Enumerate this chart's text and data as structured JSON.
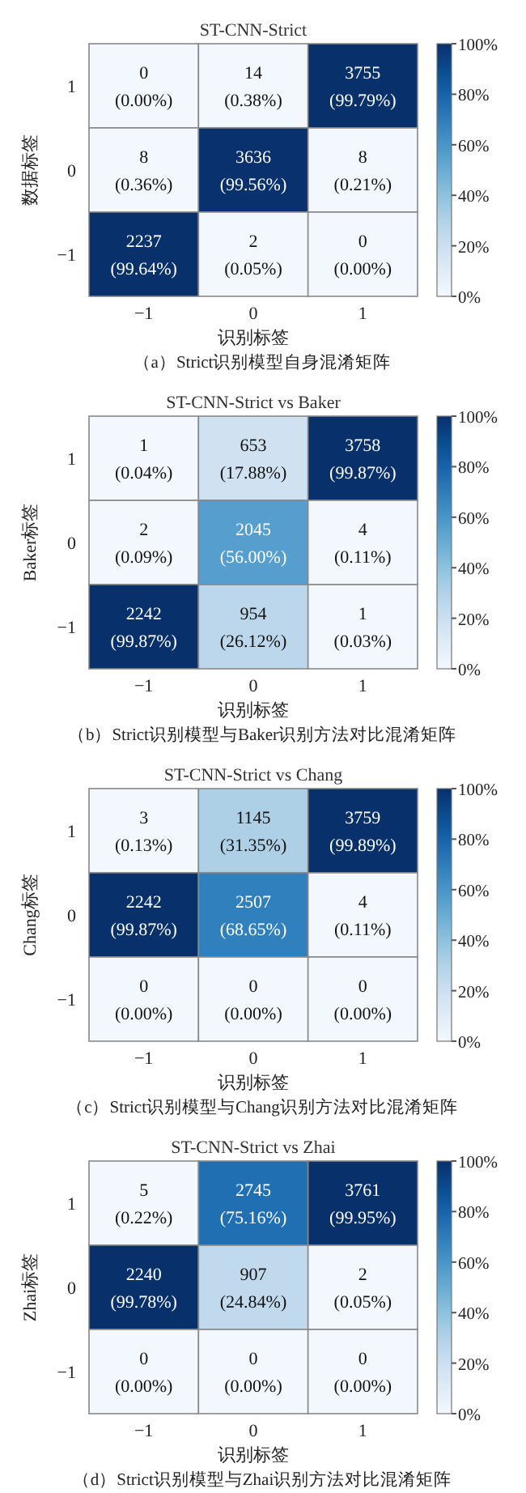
{
  "chart_data": [
    {
      "type": "heatmap",
      "title": "ST-CNN-Strict",
      "xlabel": "识别标签",
      "ylabel": "数据标签",
      "categories": [
        "−1",
        "0",
        "1"
      ],
      "y_categories": [
        "1",
        "0",
        "−1"
      ],
      "cells": [
        [
          0.0,
          0.38,
          99.79
        ],
        [
          0.36,
          99.56,
          0.21
        ],
        [
          99.64,
          0.05,
          0.0
        ]
      ],
      "cell_labels": [
        [
          "0\n(0.00%)",
          "14\n(0.38%)",
          "3755\n(99.79%)"
        ],
        [
          "8\n(0.36%)",
          "3636\n(99.56%)",
          "8\n(0.21%)"
        ],
        [
          "2237\n(99.64%)",
          "2\n(0.05%)",
          "0\n(0.00%)"
        ]
      ],
      "clim": [
        0,
        100
      ],
      "cticks": [
        {
          "value": 0,
          "label": "0%"
        },
        {
          "value": 20,
          "label": "20%"
        },
        {
          "value": 40,
          "label": "40%"
        },
        {
          "value": 60,
          "label": "60%"
        },
        {
          "value": 80,
          "label": "80%"
        },
        {
          "value": 100,
          "label": "100%"
        }
      ],
      "annotations": [
        "（a）Strict识别模型自身混淆矩阵"
      ]
    },
    {
      "type": "heatmap",
      "title": "ST-CNN-Strict vs Baker",
      "xlabel": "识别标签",
      "ylabel": "Baker标签",
      "categories": [
        "−1",
        "0",
        "1"
      ],
      "y_categories": [
        "1",
        "0",
        "−1"
      ],
      "cells": [
        [
          0.04,
          17.88,
          99.87
        ],
        [
          0.09,
          56.0,
          0.11
        ],
        [
          99.87,
          26.12,
          0.03
        ]
      ],
      "cell_labels": [
        [
          "1\n(0.04%)",
          "653\n(17.88%)",
          "3758\n(99.87%)"
        ],
        [
          "2\n(0.09%)",
          "2045\n(56.00%)",
          "4\n(0.11%)"
        ],
        [
          "2242\n(99.87%)",
          "954\n(26.12%)",
          "1\n(0.03%)"
        ]
      ],
      "clim": [
        0,
        100
      ],
      "cticks": [
        {
          "value": 0,
          "label": "0%"
        },
        {
          "value": 20,
          "label": "20%"
        },
        {
          "value": 40,
          "label": "40%"
        },
        {
          "value": 60,
          "label": "60%"
        },
        {
          "value": 80,
          "label": "80%"
        },
        {
          "value": 100,
          "label": "100%"
        }
      ],
      "annotations": [
        "（b）Strict识别模型与Baker识别方法对比混淆矩阵"
      ]
    },
    {
      "type": "heatmap",
      "title": "ST-CNN-Strict vs Chang",
      "xlabel": "识别标签",
      "ylabel": "Chang标签",
      "categories": [
        "−1",
        "0",
        "1"
      ],
      "y_categories": [
        "1",
        "0",
        "−1"
      ],
      "cells": [
        [
          0.13,
          31.35,
          99.89
        ],
        [
          99.87,
          68.65,
          0.11
        ],
        [
          0.0,
          0.0,
          0.0
        ]
      ],
      "cell_labels": [
        [
          "3\n(0.13%)",
          "1145\n(31.35%)",
          "3759\n(99.89%)"
        ],
        [
          "2242\n(99.87%)",
          "2507\n(68.65%)",
          "4\n(0.11%)"
        ],
        [
          "0\n(0.00%)",
          "0\n(0.00%)",
          "0\n(0.00%)"
        ]
      ],
      "clim": [
        0,
        100
      ],
      "cticks": [
        {
          "value": 0,
          "label": "0%"
        },
        {
          "value": 20,
          "label": "20%"
        },
        {
          "value": 40,
          "label": "40%"
        },
        {
          "value": 60,
          "label": "60%"
        },
        {
          "value": 80,
          "label": "80%"
        },
        {
          "value": 100,
          "label": "100%"
        }
      ],
      "annotations": [
        "（c）Strict识别模型与Chang识别方法对比混淆矩阵"
      ]
    },
    {
      "type": "heatmap",
      "title": "ST-CNN-Strict vs Zhai",
      "xlabel": "识别标签",
      "ylabel": "Zhai标签",
      "categories": [
        "−1",
        "0",
        "1"
      ],
      "y_categories": [
        "1",
        "0",
        "−1"
      ],
      "cells": [
        [
          0.22,
          75.16,
          99.95
        ],
        [
          99.78,
          24.84,
          0.05
        ],
        [
          0.0,
          0.0,
          0.0
        ]
      ],
      "cell_labels": [
        [
          "5\n(0.22%)",
          "2745\n(75.16%)",
          "3761\n(99.95%)"
        ],
        [
          "2240\n(99.78%)",
          "907\n(24.84%)",
          "2\n(0.05%)"
        ],
        [
          "0\n(0.00%)",
          "0\n(0.00%)",
          "0\n(0.00%)"
        ]
      ],
      "clim": [
        0,
        100
      ],
      "cticks": [
        {
          "value": 0,
          "label": "0%"
        },
        {
          "value": 20,
          "label": "20%"
        },
        {
          "value": 40,
          "label": "40%"
        },
        {
          "value": 60,
          "label": "60%"
        },
        {
          "value": 80,
          "label": "80%"
        },
        {
          "value": 100,
          "label": "100%"
        }
      ],
      "annotations": [
        "（d）Strict识别模型与Zhai识别方法对比混淆矩阵"
      ]
    }
  ]
}
